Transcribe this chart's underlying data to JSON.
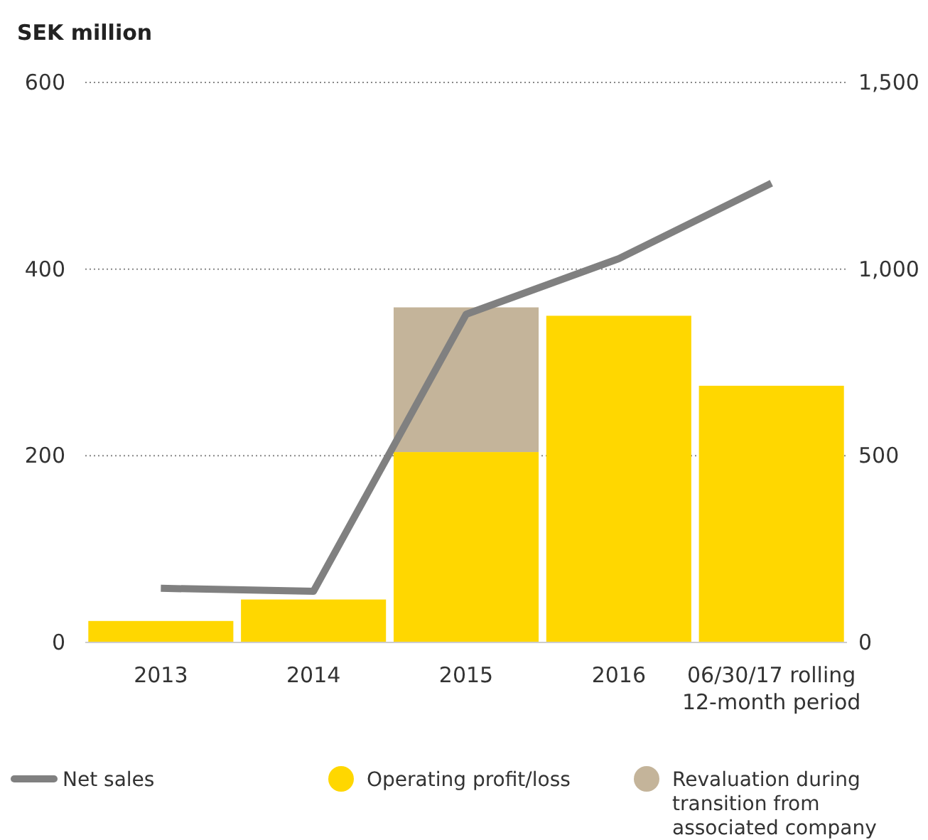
{
  "chart_data": {
    "type": "bar",
    "ylabel": "SEK million",
    "categories": [
      "2013",
      "2014",
      "2015",
      "2016",
      "06/30/17 rolling 12-month period"
    ],
    "series": [
      {
        "name": "Net sales",
        "type": "line",
        "axis": "y2",
        "color": "#808080",
        "values": [
          145,
          137,
          879,
          1028,
          1230
        ]
      },
      {
        "name": "Operating profit/loss",
        "color": "#ffd700",
        "values": [
          23,
          46,
          204,
          350,
          275
        ]
      },
      {
        "name": "Revaluation during transition from associated company",
        "color": "#c4b49a",
        "values": [
          null,
          null,
          155,
          null,
          null
        ]
      }
    ],
    "stacked": true,
    "ylim": [
      0,
      600
    ],
    "yticks": [
      0,
      200,
      400,
      600
    ],
    "y2lim": [
      0,
      1500
    ],
    "y2ticks": [
      0,
      500,
      {
        "value": 1000,
        "label": "1,000"
      },
      {
        "value": 1500,
        "label": "1,500"
      }
    ],
    "grid": "y",
    "legend": "bottom",
    "marker": "none"
  }
}
